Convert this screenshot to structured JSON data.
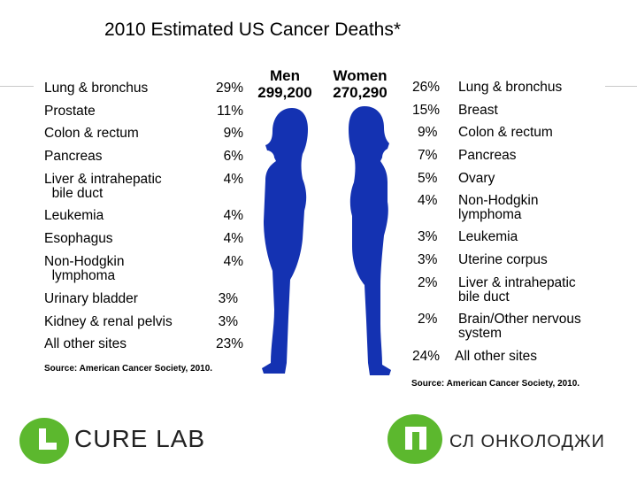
{
  "colors": {
    "silhouette": "#1432b2",
    "logo_green": "#5cb82e",
    "logo_dark": "#222222"
  },
  "chart_data": {
    "type": "table",
    "title": "2010 Estimated US Cancer Deaths*",
    "men": {
      "label": "Men",
      "total": "299,200",
      "rows": [
        {
          "site": "Lung & bronchus",
          "percent": "29%"
        },
        {
          "site": "Prostate",
          "percent": "11%"
        },
        {
          "site": "Colon & rectum",
          "percent": "9%"
        },
        {
          "site": "Pancreas",
          "percent": "6%"
        },
        {
          "site": "Liver & intrahepatic\n  bile duct",
          "percent": "4%"
        },
        {
          "site": "Leukemia",
          "percent": "4%"
        },
        {
          "site": "Esophagus",
          "percent": "4%"
        },
        {
          "site": "Non-Hodgkin\n  lymphoma",
          "percent": "4%"
        },
        {
          "site": "Urinary bladder",
          "percent": "3%"
        },
        {
          "site": "Kidney & renal pelvis",
          "percent": "3%"
        },
        {
          "site": "All other sites",
          "percent": "23%"
        }
      ],
      "source": "Source: American Cancer Society, 2010."
    },
    "women": {
      "label": "Women",
      "total": "270,290",
      "rows": [
        {
          "site": "Lung & bronchus",
          "percent": "26%"
        },
        {
          "site": "Breast",
          "percent": "15%"
        },
        {
          "site": "Colon & rectum",
          "percent": "9%"
        },
        {
          "site": "Pancreas",
          "percent": "7%"
        },
        {
          "site": "Ovary",
          "percent": "5%"
        },
        {
          "site": "Non-Hodgkin\nlymphoma",
          "percent": "4%"
        },
        {
          "site": "Leukemia",
          "percent": "3%"
        },
        {
          "site": "Uterine corpus",
          "percent": "3%"
        },
        {
          "site": "Liver & intrahepatic\nbile duct",
          "percent": "2%"
        },
        {
          "site": "Brain/Other nervous\nsystem",
          "percent": "2%"
        },
        {
          "site": "All other sites",
          "percent": "24%"
        }
      ],
      "source": "Source: American Cancer Society, 2010."
    }
  },
  "logos": {
    "left_text": "CURE LAB",
    "right_text": "СЛ ОНКОЛОДЖИ"
  }
}
